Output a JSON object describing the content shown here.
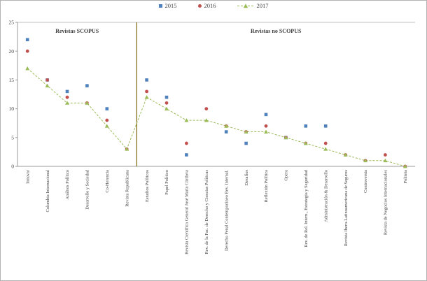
{
  "chart_data": {
    "type": "scatter",
    "title": "",
    "xlabel": "",
    "ylabel": "",
    "ylim": [
      0,
      25
    ],
    "yticks": [
      0,
      5,
      10,
      15,
      20,
      25
    ],
    "grid": false,
    "legend_position": "top",
    "sections": [
      {
        "label": "Revistas SCOPUS",
        "start": 0,
        "end": 5
      },
      {
        "label": "Revistas no SCOPUS",
        "start": 6,
        "end": 19
      }
    ],
    "categories": [
      "Innovar",
      "Colombia Internacional",
      "Análisis Político",
      "Desarrollo y Sociedad",
      "Co-Herencia",
      "Revista Republicana",
      "Estudios Políticos",
      "Papel Político",
      "Revista Científica General José María Córdova",
      "Rev. de la Fac. de Derecho y Ciencias Políticas",
      "Derecho Penal Contemporáneo Rev. Internal.",
      "Desafíos",
      "Reflexión Política",
      "Opera",
      "Rev. de Rel. Intern., Estrategia y Seguridad",
      "Administración & Desarrollo",
      "Revista Ibero-Latinoamericana de Seguros",
      "Controversia",
      "Revista de Negocios Internacionales",
      "Politeia"
    ],
    "series": [
      {
        "name": "2015",
        "marker": "square",
        "color": "#4F81BD",
        "line": false,
        "values": [
          22,
          15,
          13,
          14,
          10,
          null,
          15,
          12,
          2,
          null,
          6,
          4,
          9,
          5,
          7,
          7,
          null,
          null,
          null,
          null
        ]
      },
      {
        "name": "2016",
        "marker": "circle",
        "color": "#C0504D",
        "line": false,
        "values": [
          20,
          15,
          12,
          11,
          8,
          3,
          13,
          11,
          4,
          10,
          7,
          6,
          7,
          5,
          4,
          4,
          2,
          1,
          2,
          0
        ]
      },
      {
        "name": "2017",
        "marker": "triangle",
        "color": "#9BBB59",
        "line": true,
        "line_style": "dashed",
        "values": [
          17,
          14,
          11,
          11,
          7,
          3,
          12,
          10,
          8,
          8,
          7,
          6,
          6,
          5,
          4,
          3,
          2,
          1,
          1,
          0
        ]
      }
    ]
  },
  "colors": {
    "divider": "#7D6608",
    "section_label": "#953735",
    "axis": "#9a9a9a",
    "plot_top_border": "#bfbfbf",
    "tick_text": "#404040",
    "category_text": "#333333"
  }
}
